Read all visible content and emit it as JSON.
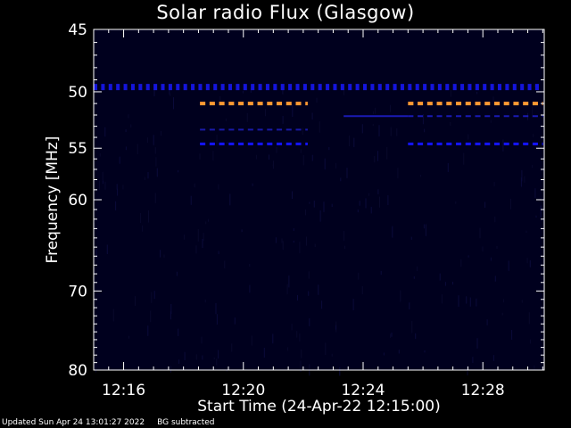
{
  "chart_data": {
    "type": "heatmap",
    "title": "Solar radio Flux (Glasgow)",
    "xlabel": "Start Time (24-Apr-22 12:15:00)",
    "ylabel": "Frequency [MHz]",
    "x_tick_labels": [
      "12:16",
      "12:20",
      "12:24",
      "12:28"
    ],
    "x_tick_minutes": [
      16,
      20,
      24,
      28
    ],
    "xlim_minutes": [
      15,
      30.05
    ],
    "y_tick_labels": [
      "45",
      "50",
      "55",
      "60",
      "70",
      "80"
    ],
    "y_tick_values": [
      45,
      50,
      55,
      60,
      70,
      80
    ],
    "ylim": [
      80,
      45
    ],
    "y_scale": "log",
    "background_color": "#00001e",
    "frame_color": "#ffffff",
    "features": [
      {
        "kind": "dashed",
        "freq": 49.6,
        "x_start": 15.0,
        "x_end": 30.0,
        "color": "#1414dc",
        "segment": 0.12,
        "gap": 0.13,
        "thickness": 7
      },
      {
        "kind": "dashed",
        "freq": 51.0,
        "x_start": 18.55,
        "x_end": 22.15,
        "color": "#ff9933",
        "segment": 0.18,
        "gap": 0.14,
        "thickness": 4
      },
      {
        "kind": "dashed",
        "freq": 51.0,
        "x_start": 25.5,
        "x_end": 30.0,
        "color": "#ff9933",
        "segment": 0.18,
        "gap": 0.14,
        "thickness": 4
      },
      {
        "kind": "dashed",
        "freq": 53.3,
        "x_start": 18.55,
        "x_end": 22.15,
        "color": "#1a1aa8",
        "segment": 0.18,
        "gap": 0.14,
        "thickness": 2
      },
      {
        "kind": "dashed",
        "freq": 54.6,
        "x_start": 18.55,
        "x_end": 22.15,
        "color": "#1414ff",
        "segment": 0.18,
        "gap": 0.14,
        "thickness": 3
      },
      {
        "kind": "solid",
        "freq": 52.1,
        "x_start": 23.35,
        "x_end": 25.5,
        "color": "#1a1ab4",
        "thickness": 2
      },
      {
        "kind": "dashed",
        "freq": 52.1,
        "x_start": 25.5,
        "x_end": 30.0,
        "color": "#1a1ab4",
        "segment": 0.18,
        "gap": 0.14,
        "thickness": 2
      },
      {
        "kind": "dashed",
        "freq": 54.6,
        "x_start": 25.5,
        "x_end": 30.0,
        "color": "#1414ff",
        "segment": 0.18,
        "gap": 0.14,
        "thickness": 3
      }
    ]
  },
  "footer": {
    "updated": "Updated Sun Apr 24 13:01:27 2022",
    "note": "BG subtracted"
  }
}
